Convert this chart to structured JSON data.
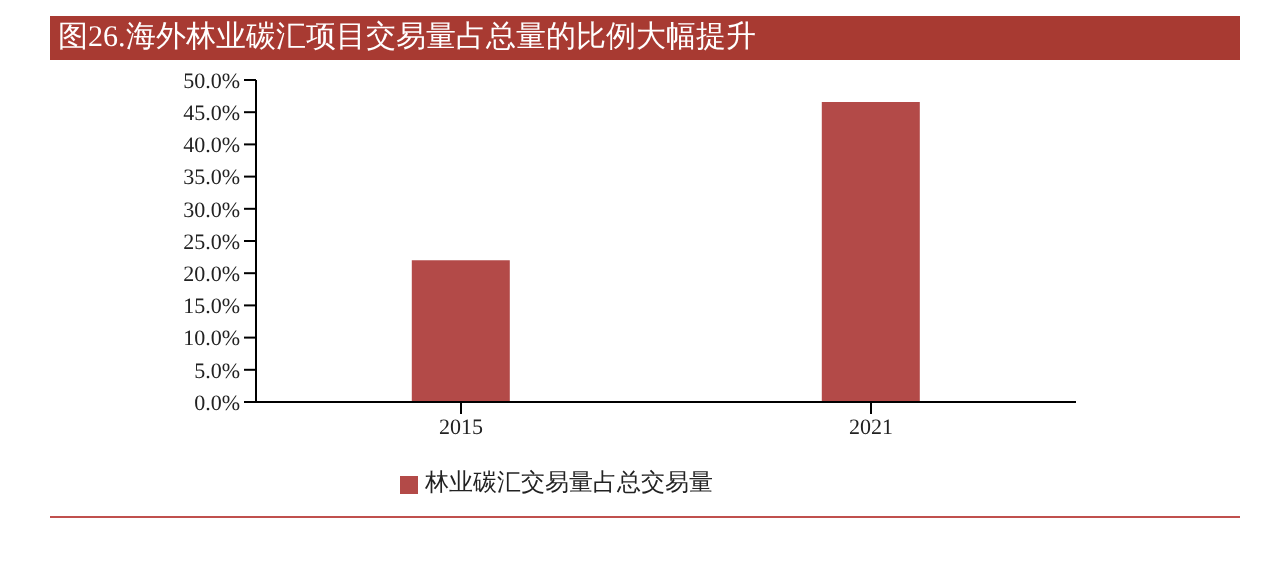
{
  "chart_data": {
    "type": "bar",
    "title": "图26.海外林业碳汇项目交易量占总量的比例大幅提升",
    "categories": [
      "2015",
      "2021"
    ],
    "series": [
      {
        "name": "林业碳汇交易量占总交易量",
        "color": "#b34a48",
        "values": [
          22.0,
          46.6
        ]
      }
    ],
    "ylim": [
      0,
      50
    ],
    "yticks": [
      {
        "value": 0,
        "label": "0.0%"
      },
      {
        "value": 5,
        "label": "5.0%"
      },
      {
        "value": 10,
        "label": "10.0%"
      },
      {
        "value": 15,
        "label": "15.0%"
      },
      {
        "value": 20,
        "label": "20.0%"
      },
      {
        "value": 25,
        "label": "25.0%"
      },
      {
        "value": 30,
        "label": "30.0%"
      },
      {
        "value": 35,
        "label": "35.0%"
      },
      {
        "value": 40,
        "label": "40.0%"
      },
      {
        "value": 45,
        "label": "45.0%"
      },
      {
        "value": 50,
        "label": "50.0%"
      }
    ],
    "grid": false,
    "legend": "bottom"
  }
}
